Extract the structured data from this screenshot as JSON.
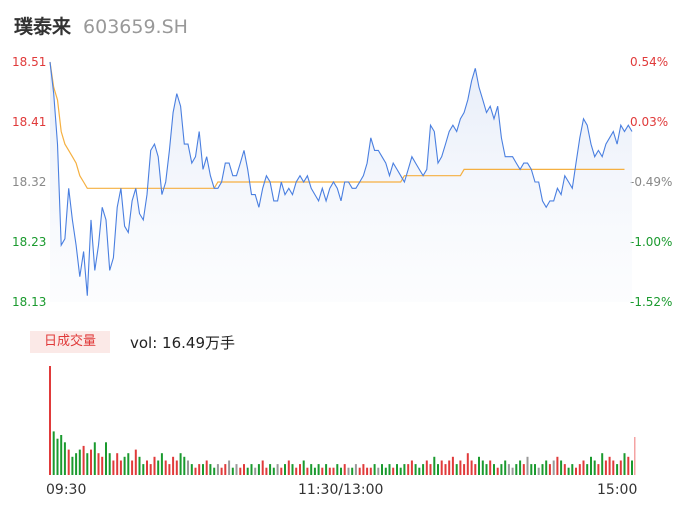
{
  "header": {
    "name": "璞泰来",
    "code": "603659.SH"
  },
  "chart_data": {
    "type": "line",
    "price_ticks": [
      "18.51",
      "18.41",
      "18.32",
      "18.23",
      "18.13"
    ],
    "pct_ticks": [
      "0.54%",
      "0.03%",
      "-0.49%",
      "-1.00%",
      "-1.52%"
    ],
    "ylim": [
      18.13,
      18.51
    ],
    "reference_price": 18.41,
    "time_labels": [
      "09:30",
      "11:30/13:00",
      "15:00"
    ],
    "volume_tag": "日成交量",
    "volume_text": "vol: 16.49万手",
    "colors": {
      "up": "#e03a3a",
      "down": "#1a9a2e",
      "flat": "#999999",
      "price_line": "#4a7fe0",
      "avg_line": "#f5b041"
    },
    "series": [
      {
        "values": [
          18.51,
          18.46,
          18.38,
          18.22,
          18.23,
          18.31,
          18.26,
          18.22,
          18.17,
          18.21,
          18.14,
          18.26,
          18.18,
          18.22,
          18.28,
          18.26,
          18.18,
          18.2,
          18.28,
          18.31,
          18.25,
          18.24,
          18.29,
          18.31,
          18.27,
          18.26,
          18.3,
          18.37,
          18.38,
          18.36,
          18.3,
          18.32,
          18.37,
          18.43,
          18.46,
          18.44,
          18.38,
          18.38,
          18.35,
          18.36,
          18.4,
          18.34,
          18.36,
          18.33,
          18.31,
          18.31,
          18.32,
          18.35,
          18.35,
          18.33,
          18.33,
          18.35,
          18.37,
          18.34,
          18.3,
          18.3,
          18.28,
          18.31,
          18.33,
          18.32,
          18.29,
          18.29,
          18.32,
          18.3,
          18.31,
          18.3,
          18.32,
          18.33,
          18.32,
          18.33,
          18.31,
          18.3,
          18.29,
          18.31,
          18.29,
          18.31,
          18.32,
          18.31,
          18.29,
          18.32,
          18.32,
          18.31,
          18.31,
          18.32,
          18.33,
          18.35,
          18.39,
          18.37,
          18.37,
          18.36,
          18.35,
          18.33,
          18.35,
          18.34,
          18.33,
          18.32,
          18.34,
          18.36,
          18.35,
          18.34,
          18.33,
          18.34,
          18.41,
          18.4,
          18.35,
          18.36,
          18.38,
          18.4,
          18.41,
          18.4,
          18.42,
          18.43,
          18.45,
          18.48,
          18.5,
          18.47,
          18.45,
          18.43,
          18.44,
          18.42,
          18.44,
          18.39,
          18.36,
          18.36,
          18.36,
          18.35,
          18.34,
          18.35,
          18.35,
          18.34,
          18.32,
          18.32,
          18.29,
          18.28,
          18.29,
          18.29,
          18.31,
          18.3,
          18.33,
          18.32,
          18.31,
          18.35,
          18.39,
          18.42,
          18.41,
          18.38,
          18.36,
          18.37,
          18.36,
          18.38,
          18.39,
          18.4,
          18.38,
          18.41,
          18.4,
          18.41,
          18.4
        ],
        "avg": [
          18.51,
          18.47,
          18.45,
          18.4,
          18.38,
          18.37,
          18.36,
          18.35,
          18.33,
          18.32,
          18.31,
          18.31,
          18.31,
          18.31,
          18.31,
          18.31,
          18.31,
          18.31,
          18.31,
          18.31,
          18.31,
          18.31,
          18.31,
          18.31,
          18.31,
          18.31,
          18.31,
          18.31,
          18.31,
          18.31,
          18.31,
          18.31,
          18.31,
          18.31,
          18.31,
          18.31,
          18.31,
          18.31,
          18.31,
          18.31,
          18.31,
          18.31,
          18.31,
          18.31,
          18.31,
          18.32,
          18.32,
          18.32,
          18.32,
          18.32,
          18.32,
          18.32,
          18.32,
          18.32,
          18.32,
          18.32,
          18.32,
          18.32,
          18.32,
          18.32,
          18.32,
          18.32,
          18.32,
          18.32,
          18.32,
          18.32,
          18.32,
          18.32,
          18.32,
          18.32,
          18.32,
          18.32,
          18.32,
          18.32,
          18.32,
          18.32,
          18.32,
          18.32,
          18.32,
          18.32,
          18.32,
          18.32,
          18.32,
          18.32,
          18.32,
          18.32,
          18.32,
          18.32,
          18.32,
          18.32,
          18.32,
          18.32,
          18.32,
          18.32,
          18.32,
          18.33,
          18.33,
          18.33,
          18.33,
          18.33,
          18.33,
          18.33,
          18.33,
          18.33,
          18.33,
          18.33,
          18.33,
          18.33,
          18.33,
          18.33,
          18.33,
          18.34,
          18.34,
          18.34,
          18.34,
          18.34,
          18.34,
          18.34,
          18.34,
          18.34,
          18.34,
          18.34,
          18.34,
          18.34,
          18.34,
          18.34,
          18.34,
          18.34,
          18.34,
          18.34,
          18.34,
          18.34,
          18.34,
          18.34,
          18.34,
          18.34,
          18.34,
          18.34,
          18.34,
          18.34,
          18.34,
          18.34,
          18.34,
          18.34,
          18.34,
          18.34,
          18.34,
          18.34,
          18.34,
          18.34,
          18.34,
          18.34,
          18.34,
          18.34,
          18.34
        ],
        "volume": [
          30,
          12,
          10,
          11,
          9,
          7,
          5,
          6,
          7,
          8,
          6,
          7,
          9,
          6,
          5,
          9,
          6,
          4,
          6,
          4,
          5,
          6,
          4,
          7,
          5,
          3,
          4,
          3,
          5,
          4,
          6,
          4,
          3,
          5,
          4,
          6,
          5,
          4,
          3,
          2,
          3,
          3,
          4,
          3,
          2,
          3,
          2,
          3,
          4,
          2,
          3,
          2,
          3,
          2,
          3,
          2,
          3,
          4,
          2,
          3,
          2,
          3,
          2,
          3,
          4,
          3,
          2,
          3,
          4,
          2,
          3,
          2,
          3,
          2,
          3,
          2,
          2,
          3,
          2,
          3,
          2,
          2,
          3,
          2,
          3,
          2,
          2,
          3,
          2,
          3,
          2,
          3,
          2,
          3,
          2,
          3,
          3,
          4,
          3,
          2,
          3,
          4,
          3,
          5,
          3,
          4,
          3,
          4,
          5,
          3,
          4,
          3,
          6,
          4,
          3,
          5,
          4,
          3,
          4,
          3,
          2,
          3,
          4,
          3,
          2,
          3,
          4,
          3,
          5,
          3,
          3,
          2,
          3,
          4,
          3,
          4,
          5,
          4,
          3,
          2,
          3,
          2,
          3,
          4,
          3,
          5,
          4,
          3,
          6,
          4,
          5,
          4,
          3,
          4,
          6,
          5,
          4
        ],
        "direction": [
          "up",
          "down",
          "down",
          "down",
          "down",
          "up",
          "down",
          "down",
          "down",
          "up",
          "down",
          "up",
          "down",
          "up",
          "up",
          "down",
          "down",
          "up",
          "up",
          "up",
          "down",
          "down",
          "up",
          "up",
          "down",
          "down",
          "up",
          "up",
          "up",
          "down",
          "down",
          "up",
          "up",
          "up",
          "up",
          "down",
          "down",
          "flat",
          "down",
          "up",
          "up",
          "down",
          "up",
          "down",
          "down",
          "flat",
          "up",
          "up",
          "flat",
          "down",
          "flat",
          "up",
          "up",
          "down",
          "down",
          "flat",
          "down",
          "up",
          "up",
          "down",
          "down",
          "flat",
          "up",
          "down",
          "up",
          "down",
          "up",
          "up",
          "down",
          "up",
          "down",
          "down",
          "down",
          "up",
          "down",
          "up",
          "up",
          "down",
          "down",
          "up",
          "flat",
          "down",
          "flat",
          "up",
          "up",
          "up",
          "up",
          "down",
          "flat",
          "down",
          "down",
          "down",
          "up",
          "down",
          "down",
          "down",
          "up",
          "up",
          "down",
          "down",
          "down",
          "up",
          "up",
          "down",
          "down",
          "up",
          "up",
          "up",
          "up",
          "down",
          "up",
          "up",
          "up",
          "up",
          "up",
          "down",
          "down",
          "down",
          "up",
          "down",
          "up",
          "down",
          "down",
          "flat",
          "flat",
          "down",
          "down",
          "up",
          "flat",
          "down",
          "down",
          "flat",
          "down",
          "down",
          "up",
          "flat",
          "up",
          "down",
          "up",
          "down",
          "down",
          "up",
          "up",
          "up",
          "down",
          "down",
          "down",
          "up",
          "down",
          "up",
          "up",
          "up",
          "down",
          "up",
          "down",
          "up",
          "down"
        ]
      }
    ]
  }
}
